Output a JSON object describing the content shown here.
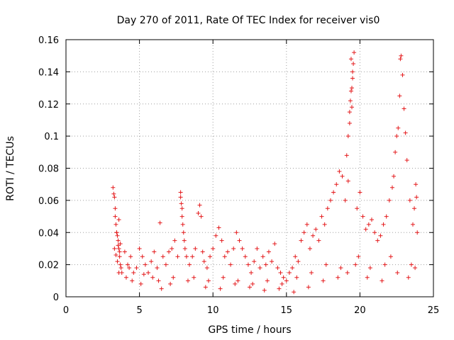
{
  "chart_data": {
    "type": "scatter",
    "title": "Day 270 of 2011, Rate Of TEC Index for receiver vis0",
    "xlabel": "GPS time / hours",
    "ylabel": "ROTI / TECUs",
    "xlim": [
      0,
      25
    ],
    "ylim": [
      0,
      0.16
    ],
    "x_ticks": [
      "0",
      "5",
      "10",
      "15",
      "20",
      "25"
    ],
    "x_tick_values": [
      0,
      5,
      10,
      15,
      20,
      25
    ],
    "y_ticks": [
      "0",
      "0.02",
      "0.04",
      "0.06",
      "0.08",
      "0.1",
      "0.12",
      "0.14",
      "0.16"
    ],
    "y_tick_values": [
      0,
      0.02,
      0.04,
      0.06,
      0.08,
      0.1,
      0.12,
      0.14,
      0.16
    ],
    "grid": true,
    "marker": "+",
    "color": "#e41a1c",
    "series": [
      {
        "x": [
          3.2,
          3.25,
          3.3,
          3.35,
          3.4,
          3.45,
          3.5,
          3.55,
          3.6,
          3.65,
          3.7,
          3.75,
          3.8,
          3.3,
          3.4,
          3.5,
          3.6,
          3.7,
          3.35,
          3.45,
          3.55,
          3.65,
          4.0,
          4.2,
          4.4,
          4.6,
          4.8,
          5.0,
          5.2,
          5.4,
          5.6,
          5.8,
          6.0,
          6.2,
          6.4,
          6.6,
          6.8,
          7.0,
          7.2,
          7.4,
          7.6,
          7.8,
          7.85,
          7.9,
          7.95,
          8.0,
          8.05,
          8.1,
          8.2,
          7.8,
          7.9,
          8.4,
          8.6,
          8.8,
          9.0,
          9.1,
          9.2,
          9.3,
          9.4,
          9.6,
          9.8,
          10.0,
          10.2,
          10.4,
          10.6,
          10.8,
          11.0,
          11.2,
          11.4,
          11.6,
          11.8,
          12.0,
          12.2,
          12.4,
          12.6,
          12.8,
          13.0,
          13.2,
          13.4,
          13.6,
          13.8,
          14.0,
          14.2,
          14.4,
          14.6,
          14.8,
          15.0,
          15.2,
          15.4,
          15.6,
          15.8,
          16.0,
          16.2,
          16.4,
          16.6,
          16.8,
          17.0,
          17.2,
          17.4,
          17.6,
          17.8,
          18.0,
          18.2,
          18.4,
          18.6,
          18.8,
          19.0,
          19.1,
          19.2,
          19.3,
          19.35,
          19.4,
          19.45,
          19.5,
          19.55,
          19.6,
          19.4,
          19.5,
          19.3,
          19.45,
          19.2,
          19.8,
          20.0,
          20.2,
          20.4,
          20.6,
          20.8,
          21.0,
          21.2,
          21.4,
          21.6,
          21.8,
          22.0,
          22.2,
          22.3,
          22.4,
          22.5,
          22.6,
          22.7,
          22.75,
          22.8,
          22.9,
          23.0,
          23.1,
          23.2,
          23.4,
          23.6,
          23.7,
          23.8,
          23.85,
          23.9,
          4.1,
          4.5,
          5.1,
          5.9,
          6.5,
          7.1,
          8.3,
          9.5,
          10.5,
          11.5,
          12.5,
          13.5,
          14.5,
          15.5,
          16.5,
          17.5,
          18.5,
          19.15,
          19.7,
          20.5,
          21.5,
          22.55,
          23.3,
          23.75,
          3.6,
          4.3,
          5.3,
          6.3,
          7.3,
          8.7,
          9.7,
          10.7,
          11.7,
          12.7,
          13.7,
          14.7,
          15.7,
          16.7,
          17.7,
          18.7,
          19.9,
          20.7,
          21.7,
          22.1,
          23.5
        ],
        "y": [
          0.068,
          0.064,
          0.062,
          0.05,
          0.045,
          0.04,
          0.038,
          0.035,
          0.03,
          0.025,
          0.02,
          0.018,
          0.015,
          0.03,
          0.026,
          0.022,
          0.048,
          0.033,
          0.055,
          0.04,
          0.032,
          0.028,
          0.028,
          0.02,
          0.025,
          0.015,
          0.018,
          0.03,
          0.025,
          0.02,
          0.015,
          0.022,
          0.028,
          0.018,
          0.046,
          0.025,
          0.02,
          0.028,
          0.03,
          0.035,
          0.025,
          0.065,
          0.058,
          0.05,
          0.045,
          0.04,
          0.035,
          0.03,
          0.025,
          0.062,
          0.055,
          0.02,
          0.025,
          0.03,
          0.052,
          0.057,
          0.05,
          0.028,
          0.022,
          0.018,
          0.025,
          0.03,
          0.038,
          0.043,
          0.035,
          0.025,
          0.028,
          0.02,
          0.03,
          0.04,
          0.035,
          0.03,
          0.025,
          0.02,
          0.015,
          0.022,
          0.03,
          0.018,
          0.025,
          0.02,
          0.028,
          0.022,
          0.033,
          0.018,
          0.015,
          0.012,
          0.01,
          0.015,
          0.018,
          0.025,
          0.022,
          0.035,
          0.04,
          0.045,
          0.03,
          0.038,
          0.042,
          0.035,
          0.05,
          0.045,
          0.055,
          0.06,
          0.065,
          0.07,
          0.078,
          0.075,
          0.06,
          0.088,
          0.1,
          0.115,
          0.122,
          0.128,
          0.13,
          0.14,
          0.145,
          0.152,
          0.148,
          0.136,
          0.108,
          0.118,
          0.072,
          0.055,
          0.065,
          0.05,
          0.042,
          0.045,
          0.048,
          0.04,
          0.035,
          0.038,
          0.045,
          0.05,
          0.06,
          0.068,
          0.075,
          0.09,
          0.1,
          0.105,
          0.125,
          0.148,
          0.15,
          0.138,
          0.117,
          0.102,
          0.085,
          0.06,
          0.045,
          0.055,
          0.07,
          0.062,
          0.04,
          0.012,
          0.01,
          0.008,
          0.012,
          0.005,
          0.008,
          0.01,
          0.006,
          0.005,
          0.008,
          0.006,
          0.004,
          0.005,
          0.003,
          0.006,
          0.01,
          0.012,
          0.015,
          0.02,
          0.012,
          0.01,
          0.015,
          0.012,
          0.018,
          0.015,
          0.018,
          0.014,
          0.01,
          0.012,
          0.012,
          0.01,
          0.012,
          0.01,
          0.008,
          0.01,
          0.008,
          0.012,
          0.015,
          0.02,
          0.018,
          0.025,
          0.018,
          0.02,
          0.025,
          0.02
        ]
      }
    ]
  }
}
